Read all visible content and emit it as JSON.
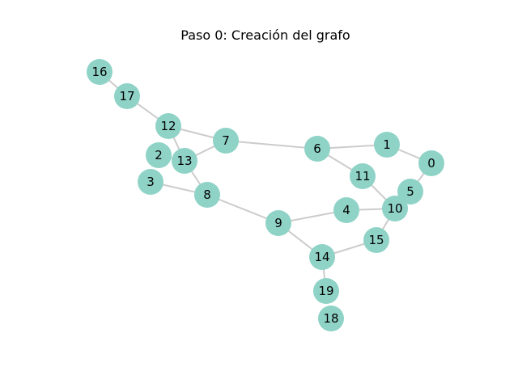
{
  "title": "Paso 0: Creación del grafo",
  "colors": {
    "node_fill": "#8fd3c7",
    "edge": "#cccccc",
    "label": "#000000",
    "background": "#ffffff"
  },
  "graph": {
    "nodes": [
      {
        "id": "0",
        "label": "0"
      },
      {
        "id": "1",
        "label": "1"
      },
      {
        "id": "2",
        "label": "2"
      },
      {
        "id": "3",
        "label": "3"
      },
      {
        "id": "4",
        "label": "4"
      },
      {
        "id": "5",
        "label": "5"
      },
      {
        "id": "6",
        "label": "6"
      },
      {
        "id": "7",
        "label": "7"
      },
      {
        "id": "8",
        "label": "8"
      },
      {
        "id": "9",
        "label": "9"
      },
      {
        "id": "10",
        "label": "10"
      },
      {
        "id": "11",
        "label": "11"
      },
      {
        "id": "12",
        "label": "12"
      },
      {
        "id": "13",
        "label": "13"
      },
      {
        "id": "14",
        "label": "14"
      },
      {
        "id": "15",
        "label": "15"
      },
      {
        "id": "16",
        "label": "16"
      },
      {
        "id": "17",
        "label": "17"
      },
      {
        "id": "18",
        "label": "18"
      },
      {
        "id": "19",
        "label": "19"
      }
    ],
    "edges": [
      [
        "16",
        "17"
      ],
      [
        "17",
        "12"
      ],
      [
        "12",
        "7"
      ],
      [
        "12",
        "13"
      ],
      [
        "2",
        "13"
      ],
      [
        "13",
        "7"
      ],
      [
        "13",
        "8"
      ],
      [
        "3",
        "8"
      ],
      [
        "7",
        "6"
      ],
      [
        "6",
        "1"
      ],
      [
        "6",
        "11"
      ],
      [
        "1",
        "0"
      ],
      [
        "0",
        "5"
      ],
      [
        "5",
        "10"
      ],
      [
        "11",
        "10"
      ],
      [
        "10",
        "4"
      ],
      [
        "10",
        "15"
      ],
      [
        "4",
        "9"
      ],
      [
        "8",
        "9"
      ],
      [
        "9",
        "14"
      ],
      [
        "15",
        "14"
      ],
      [
        "14",
        "19"
      ]
    ]
  }
}
